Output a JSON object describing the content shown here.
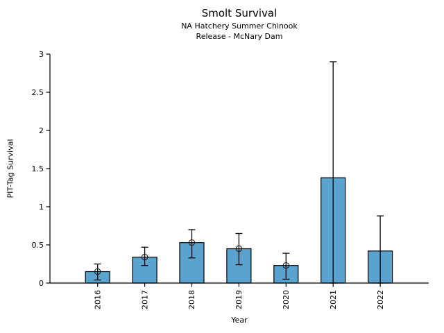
{
  "figure": {
    "title": "Smolt Survival",
    "subtitle_line1": "NA Hatchery Summer Chinook",
    "subtitle_line2": "Release - McNary Dam"
  },
  "chart_data": {
    "type": "bar",
    "title": "Smolt Survival",
    "subtitle": [
      "NA Hatchery Summer Chinook",
      "Release - McNary Dam"
    ],
    "xlabel": "Year",
    "ylabel": "PIT-Tag Survival",
    "categories": [
      "2016",
      "2017",
      "2018",
      "2019",
      "2020",
      "2021",
      "2022"
    ],
    "values": [
      0.15,
      0.34,
      0.53,
      0.45,
      0.23,
      1.38,
      0.42
    ],
    "error_low": [
      0.04,
      0.23,
      0.33,
      0.24,
      0.05,
      0.0,
      0.0
    ],
    "error_high": [
      0.25,
      0.47,
      0.7,
      0.65,
      0.39,
      2.9,
      0.88
    ],
    "point_markers_at_bar_top": [
      true,
      true,
      true,
      true,
      true,
      false,
      false
    ],
    "ylim": [
      0,
      3
    ],
    "yticks": [
      0,
      0.5,
      1,
      1.5,
      2,
      2.5,
      3
    ],
    "yticklabels": [
      "0",
      "0.5",
      "1",
      "1.5",
      "2",
      "2.5",
      "3"
    ],
    "grid": false,
    "legend": null,
    "bar_color": "#5BA3CF",
    "bar_edge_color": "#000000",
    "error_color": "#000000",
    "marker_style": "open-circle",
    "spines": [
      "left",
      "bottom"
    ]
  }
}
